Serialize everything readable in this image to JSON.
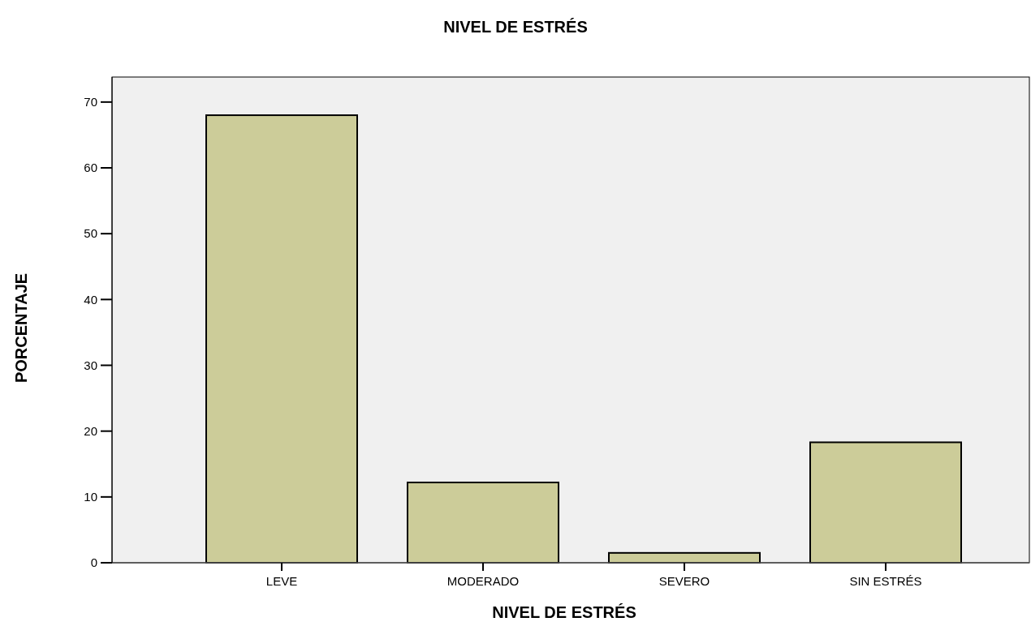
{
  "chart_data": {
    "type": "bar",
    "title": "NIVEL DE ESTRÉS",
    "xlabel": "NIVEL DE ESTRÉS",
    "ylabel": "PORCENTAJE",
    "categories": [
      "LEVE",
      "MODERADO",
      "SEVERO",
      "SIN ESTRÉS"
    ],
    "values": [
      68,
      12.2,
      1.5,
      18.3
    ],
    "color": "#cccc99",
    "ylim": [
      0,
      73.8
    ],
    "yticks": [
      0,
      10,
      20,
      30,
      40,
      50,
      60,
      70
    ],
    "grid": false
  }
}
